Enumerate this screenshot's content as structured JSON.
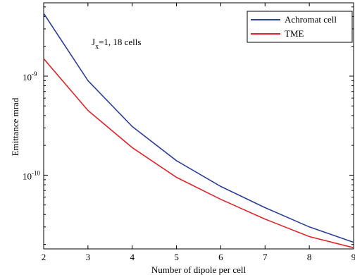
{
  "chart_data": {
    "type": "line",
    "title": "",
    "xlabel": "Number of dipole per cell",
    "ylabel": "Emittance  mrad",
    "x": [
      2,
      3,
      4,
      5,
      6,
      7,
      8,
      9
    ],
    "xlim": [
      2,
      9
    ],
    "y_scale": "log",
    "ylim": [
      1.8e-11,
      5.5e-09
    ],
    "x_ticks": [
      "2",
      "3",
      "4",
      "5",
      "6",
      "7",
      "8",
      "9"
    ],
    "y_ticks": [
      {
        "value": 1e-09,
        "base": "10",
        "exp": "-9"
      },
      {
        "value": 1e-10,
        "base": "10",
        "exp": "-10"
      }
    ],
    "grid": false,
    "legend_position": "top-right",
    "series": [
      {
        "name": "Achromat cell",
        "color": "#2b3f9c",
        "values": [
          4.3e-09,
          9e-10,
          3.1e-10,
          1.4e-10,
          7.7e-11,
          4.7e-11,
          3e-11,
          2.1e-11
        ]
      },
      {
        "name": "TME",
        "color": "#e0262b",
        "values": [
          1.5e-09,
          4.5e-10,
          1.9e-10,
          9.5e-11,
          5.7e-11,
          3.6e-11,
          2.4e-11,
          1.85e-11
        ]
      }
    ],
    "annotation": {
      "j": "J",
      "sub": "x",
      "rest": "=1, 18 cells"
    }
  }
}
